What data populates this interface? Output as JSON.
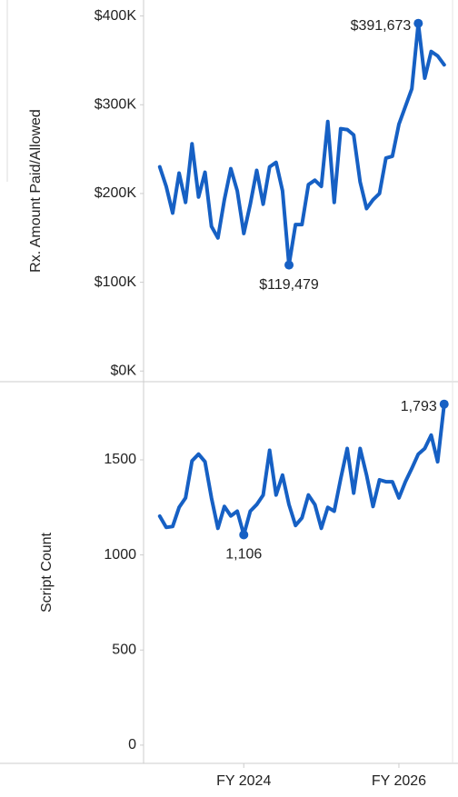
{
  "chart_data": [
    {
      "type": "line",
      "y_label": "Rx. Amount Paid/Allowed",
      "x": [
        0,
        1,
        2,
        3,
        4,
        5,
        6,
        7,
        8,
        9,
        10,
        11,
        12,
        13,
        14,
        15,
        16,
        17,
        18,
        19,
        20,
        21,
        22,
        23,
        24,
        25,
        26,
        27,
        28,
        29,
        30,
        31,
        32,
        33,
        34,
        35,
        36,
        37,
        38,
        39,
        40,
        41,
        42,
        43,
        44
      ],
      "xlim": [
        -2.5,
        45.3
      ],
      "series": [
        {
          "name": "Rx. Amount Paid/Allowed",
          "color": "#1660c4",
          "values": [
            230000,
            208000,
            178000,
            223000,
            190000,
            256000,
            196000,
            224000,
            163000,
            150000,
            193000,
            228000,
            203000,
            155000,
            188000,
            226000,
            188000,
            230000,
            235000,
            203000,
            119479,
            165000,
            165000,
            210000,
            215000,
            208000,
            281000,
            190000,
            273000,
            272000,
            266000,
            213000,
            183000,
            193000,
            200000,
            240000,
            242000,
            278000,
            298000,
            318000,
            391673,
            330000,
            360000,
            355000,
            345000
          ],
          "value_labels": [
            null,
            null,
            null,
            null,
            null,
            null,
            null,
            null,
            null,
            null,
            null,
            null,
            null,
            null,
            null,
            null,
            null,
            null,
            null,
            null,
            "$119,479",
            null,
            null,
            null,
            null,
            null,
            null,
            null,
            null,
            null,
            null,
            null,
            null,
            null,
            null,
            null,
            null,
            null,
            null,
            null,
            "$391,673",
            null,
            null,
            null,
            null
          ]
        }
      ],
      "ylim": [
        -12000,
        418000
      ],
      "yticks": [
        {
          "value": 0,
          "label": "$0K"
        },
        {
          "value": 100000,
          "label": "$100K"
        },
        {
          "value": 200000,
          "label": "$200K"
        },
        {
          "value": 300000,
          "label": "$300K"
        },
        {
          "value": 400000,
          "label": "$400K"
        }
      ]
    },
    {
      "type": "line",
      "y_label": "Script Count",
      "x": [
        0,
        1,
        2,
        3,
        4,
        5,
        6,
        7,
        8,
        9,
        10,
        11,
        12,
        13,
        14,
        15,
        16,
        17,
        18,
        19,
        20,
        21,
        22,
        23,
        24,
        25,
        26,
        27,
        28,
        29,
        30,
        31,
        32,
        33,
        34,
        35,
        36,
        37,
        38,
        39,
        40,
        41,
        42,
        43,
        44
      ],
      "xlim": [
        -2.5,
        45.3
      ],
      "xticks": [
        {
          "value": 13,
          "label": "FY 2024"
        },
        {
          "value": 37,
          "label": "FY 2026"
        }
      ],
      "series": [
        {
          "name": "Script Count",
          "color": "#1660c4",
          "values": [
            1204,
            1145,
            1150,
            1250,
            1300,
            1495,
            1530,
            1490,
            1300,
            1140,
            1255,
            1205,
            1230,
            1106,
            1230,
            1265,
            1315,
            1550,
            1315,
            1420,
            1265,
            1155,
            1195,
            1315,
            1265,
            1140,
            1250,
            1230,
            1400,
            1560,
            1325,
            1560,
            1420,
            1255,
            1395,
            1385,
            1385,
            1300,
            1385,
            1455,
            1530,
            1560,
            1630,
            1490,
            1793
          ],
          "value_labels": [
            null,
            null,
            null,
            null,
            null,
            null,
            null,
            null,
            null,
            null,
            null,
            null,
            null,
            "1,106",
            null,
            null,
            null,
            null,
            null,
            null,
            null,
            null,
            null,
            null,
            null,
            null,
            null,
            null,
            null,
            null,
            null,
            null,
            null,
            null,
            null,
            null,
            null,
            null,
            null,
            null,
            null,
            null,
            null,
            null,
            "1,793"
          ]
        }
      ],
      "ylim": [
        -96,
        1911
      ],
      "yticks": [
        0,
        500,
        1000,
        1500
      ]
    }
  ]
}
